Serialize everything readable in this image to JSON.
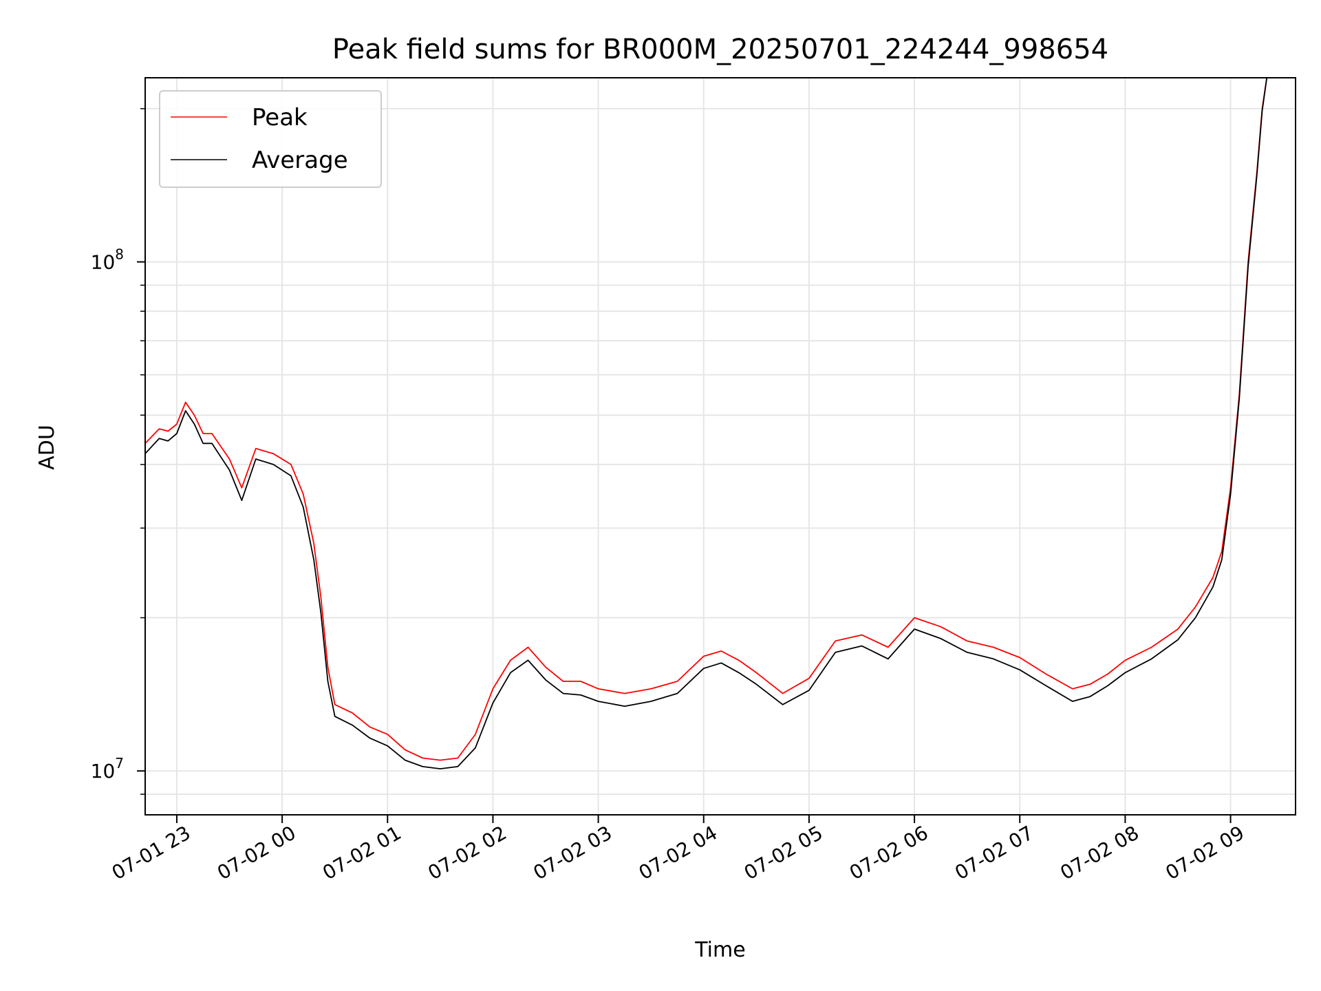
{
  "chart_data": {
    "type": "line",
    "title": "Peak field sums for BR000M_20250701_224244_998654",
    "xlabel": "Time",
    "ylabel": "ADU",
    "y_scale": "log",
    "xlim": [
      "2025-07-01 22:42",
      "2025-07-02 09:37"
    ],
    "ylim": [
      8200000,
      230000000
    ],
    "grid": true,
    "legend_position": "upper-left",
    "x_ticks": [
      "07-01 23",
      "07-02 00",
      "07-02 01",
      "07-02 02",
      "07-02 03",
      "07-02 04",
      "07-02 05",
      "07-02 06",
      "07-02 07",
      "07-02 08",
      "07-02 09"
    ],
    "x_tick_times": [
      "2025-07-01 23:00",
      "2025-07-02 00:00",
      "2025-07-02 01:00",
      "2025-07-02 02:00",
      "2025-07-02 03:00",
      "2025-07-02 04:00",
      "2025-07-02 05:00",
      "2025-07-02 06:00",
      "2025-07-02 07:00",
      "2025-07-02 08:00",
      "2025-07-02 09:00"
    ],
    "y_ticks": [
      {
        "value": 10000000,
        "label": "10",
        "exp": "7"
      },
      {
        "value": 100000000,
        "label": "10",
        "exp": "8"
      }
    ],
    "x": [
      "2025-07-01 22:42",
      "2025-07-01 22:50",
      "2025-07-01 22:55",
      "2025-07-01 23:00",
      "2025-07-01 23:05",
      "2025-07-01 23:10",
      "2025-07-01 23:15",
      "2025-07-01 23:20",
      "2025-07-01 23:30",
      "2025-07-01 23:37",
      "2025-07-01 23:45",
      "2025-07-01 23:55",
      "2025-07-02 00:05",
      "2025-07-02 00:12",
      "2025-07-02 00:18",
      "2025-07-02 00:22",
      "2025-07-02 00:26",
      "2025-07-02 00:30",
      "2025-07-02 00:40",
      "2025-07-02 00:50",
      "2025-07-02 01:00",
      "2025-07-02 01:10",
      "2025-07-02 01:20",
      "2025-07-02 01:30",
      "2025-07-02 01:40",
      "2025-07-02 01:50",
      "2025-07-02 02:00",
      "2025-07-02 02:10",
      "2025-07-02 02:20",
      "2025-07-02 02:30",
      "2025-07-02 02:40",
      "2025-07-02 02:50",
      "2025-07-02 03:00",
      "2025-07-02 03:15",
      "2025-07-02 03:30",
      "2025-07-02 03:45",
      "2025-07-02 04:00",
      "2025-07-02 04:10",
      "2025-07-02 04:20",
      "2025-07-02 04:30",
      "2025-07-02 04:45",
      "2025-07-02 05:00",
      "2025-07-02 05:15",
      "2025-07-02 05:30",
      "2025-07-02 05:45",
      "2025-07-02 06:00",
      "2025-07-02 06:15",
      "2025-07-02 06:30",
      "2025-07-02 06:45",
      "2025-07-02 07:00",
      "2025-07-02 07:15",
      "2025-07-02 07:30",
      "2025-07-02 07:40",
      "2025-07-02 07:50",
      "2025-07-02 08:00",
      "2025-07-02 08:15",
      "2025-07-02 08:30",
      "2025-07-02 08:40",
      "2025-07-02 08:50",
      "2025-07-02 08:55",
      "2025-07-02 09:00",
      "2025-07-02 09:05",
      "2025-07-02 09:10",
      "2025-07-02 09:15",
      "2025-07-02 09:18",
      "2025-07-02 09:21"
    ],
    "series": [
      {
        "name": "Peak",
        "color": "#ff0000",
        "values": [
          44000000,
          47000000,
          46500000,
          48000000,
          53000000,
          50000000,
          46000000,
          46000000,
          41000000,
          36000000,
          43000000,
          42000000,
          40000000,
          35000000,
          28000000,
          22000000,
          16000000,
          13500000,
          13000000,
          12200000,
          11800000,
          11000000,
          10600000,
          10500000,
          10600000,
          11800000,
          14500000,
          16500000,
          17500000,
          16000000,
          15000000,
          15000000,
          14500000,
          14200000,
          14500000,
          15000000,
          16800000,
          17200000,
          16500000,
          15600000,
          14200000,
          15200000,
          18000000,
          18500000,
          17500000,
          20000000,
          19200000,
          18000000,
          17500000,
          16700000,
          15500000,
          14500000,
          14800000,
          15500000,
          16500000,
          17500000,
          19000000,
          21000000,
          24000000,
          27000000,
          36000000,
          55000000,
          100000000,
          150000000,
          200000000,
          235000000
        ]
      },
      {
        "name": "Average",
        "color": "#000000",
        "values": [
          42000000,
          45000000,
          44500000,
          46000000,
          51000000,
          48000000,
          44000000,
          44000000,
          39000000,
          34000000,
          41000000,
          40000000,
          38000000,
          33000000,
          26000000,
          20500000,
          15000000,
          12800000,
          12300000,
          11600000,
          11200000,
          10500000,
          10200000,
          10100000,
          10200000,
          11100000,
          13600000,
          15600000,
          16500000,
          15100000,
          14200000,
          14100000,
          13700000,
          13400000,
          13700000,
          14200000,
          15900000,
          16300000,
          15600000,
          14800000,
          13500000,
          14400000,
          17100000,
          17600000,
          16600000,
          19000000,
          18200000,
          17100000,
          16600000,
          15800000,
          14700000,
          13700000,
          14000000,
          14700000,
          15600000,
          16600000,
          18100000,
          20000000,
          23000000,
          26000000,
          35000000,
          54000000,
          98000000,
          148000000,
          198000000,
          235000000
        ]
      }
    ]
  }
}
